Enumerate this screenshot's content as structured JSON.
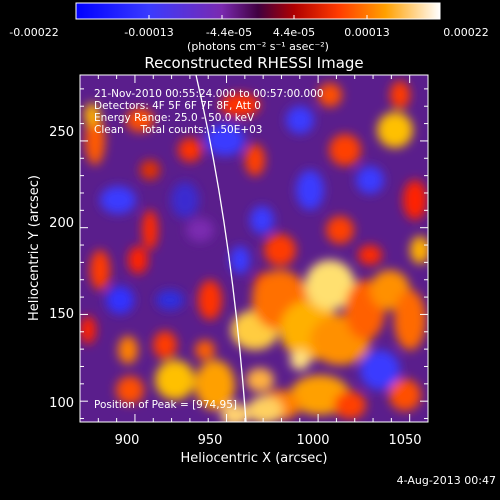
{
  "colorbar": {
    "ticks": [
      "-0.00022",
      "-0.00013",
      "-4.4e-05",
      "4.4e-05",
      "0.00013",
      "0.00022"
    ],
    "units": "(photons cm⁻² s⁻¹ asec⁻²)"
  },
  "plot": {
    "title": "Reconstructed RHESSI Image",
    "info": [
      "21-Nov-2010 00:55:24.000 to 00:57:00.000",
      "Detectors: 4F 5F 6F 7F 8F, Att 0",
      "Energy Range: 25.0 - 50.0 keV",
      "Clean     Total counts: 1.50E+03"
    ],
    "peak_label": "Position of Peak = [974,95]",
    "xlabel": "Heliocentric X (arcsec)",
    "ylabel": "Heliocentric Y (arcsec)",
    "xticks": [
      "900",
      "950",
      "1000",
      "1050"
    ],
    "yticks": [
      "100",
      "150",
      "200",
      "250"
    ],
    "xrange": [
      870,
      1060
    ],
    "yrange": [
      88,
      288
    ]
  },
  "footer": {
    "date": "4-Aug-2013 00:47"
  },
  "colors": {
    "background": "#000000",
    "limb_line": "#ffffff",
    "text": "#ffffff"
  }
}
